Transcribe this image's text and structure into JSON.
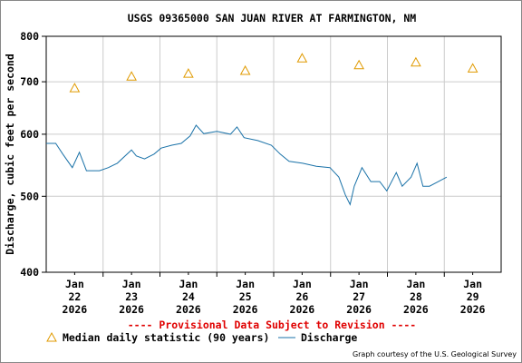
{
  "chart_data": {
    "type": "line",
    "title": "USGS 09365000 SAN JUAN RIVER AT FARMINGTON, NM",
    "y_label": "Discharge, cubic feet per second",
    "annotation": "---- Provisional Data Subject to Revision ----",
    "credit": "Graph courtesy of the U.S. Geological Survey",
    "log_y": true,
    "grid": true,
    "ylim": [
      400,
      800
    ],
    "yticks": [
      400,
      500,
      600,
      700,
      800
    ],
    "xlim": [
      "2026-01-22T00:00",
      "2026-01-30T00:00"
    ],
    "xticks": [
      {
        "value": "2026-01-22T12:00",
        "label": [
          "Jan",
          "22",
          "2026"
        ]
      },
      {
        "value": "2026-01-23T12:00",
        "label": [
          "Jan",
          "23",
          "2026"
        ]
      },
      {
        "value": "2026-01-24T12:00",
        "label": [
          "Jan",
          "24",
          "2026"
        ]
      },
      {
        "value": "2026-01-25T12:00",
        "label": [
          "Jan",
          "25",
          "2026"
        ]
      },
      {
        "value": "2026-01-26T12:00",
        "label": [
          "Jan",
          "26",
          "2026"
        ]
      },
      {
        "value": "2026-01-27T12:00",
        "label": [
          "Jan",
          "27",
          "2026"
        ]
      },
      {
        "value": "2026-01-28T12:00",
        "label": [
          "Jan",
          "28",
          "2026"
        ]
      },
      {
        "value": "2026-01-29T12:00",
        "label": [
          "Jan",
          "29",
          "2026"
        ]
      }
    ],
    "xgrid": [
      "2026-01-23T00:00",
      "2026-01-24T00:00",
      "2026-01-25T00:00",
      "2026-01-26T00:00",
      "2026-01-27T00:00",
      "2026-01-28T00:00",
      "2026-01-29T00:00"
    ],
    "series": [
      {
        "name": "Median daily statistic (90 years)",
        "color": "#e09a00",
        "marker": "triangle",
        "x": [
          "2026-01-22T12:00",
          "2026-01-23T12:00",
          "2026-01-24T12:00",
          "2026-01-25T12:00",
          "2026-01-26T12:00",
          "2026-01-27T12:00",
          "2026-01-28T12:00",
          "2026-01-29T12:00"
        ],
        "values": [
          687,
          711,
          717,
          723,
          750,
          735,
          741,
          728
        ]
      },
      {
        "name": "Discharge",
        "color": "#1a72a8",
        "marker": "line",
        "x": [
          "2026-01-22T00:00",
          "2026-01-22T04:00",
          "2026-01-22T07:00",
          "2026-01-22T11:00",
          "2026-01-22T14:00",
          "2026-01-22T17:00",
          "2026-01-22T22:30",
          "2026-01-23T02:15",
          "2026-01-23T06:00",
          "2026-01-23T12:00",
          "2026-01-23T14:00",
          "2026-01-23T17:30",
          "2026-01-23T21:30",
          "2026-01-24T00:30",
          "2026-01-24T05:00",
          "2026-01-24T09:00",
          "2026-01-24T12:45",
          "2026-01-24T15:15",
          "2026-01-24T18:30",
          "2026-01-25T00:00",
          "2026-01-25T05:45",
          "2026-01-25T08:30",
          "2026-01-25T11:30",
          "2026-01-25T17:15",
          "2026-01-25T23:00",
          "2026-01-26T02:45",
          "2026-01-26T06:30",
          "2026-01-26T12:15",
          "2026-01-26T18:00",
          "2026-01-26T23:45",
          "2026-01-27T03:30",
          "2026-01-27T06:15",
          "2026-01-27T08:15",
          "2026-01-27T10:00",
          "2026-01-27T13:15",
          "2026-01-27T17:00",
          "2026-01-27T20:45",
          "2026-01-27T23:45",
          "2026-01-28T03:45",
          "2026-01-28T06:15",
          "2026-01-28T10:00",
          "2026-01-28T12:30",
          "2026-01-28T15:00",
          "2026-01-28T17:45",
          "2026-01-28T21:30",
          "2026-01-29T01:00"
        ],
        "values": [
          584,
          584,
          566,
          544,
          569,
          539,
          539,
          544,
          551,
          573,
          563,
          558,
          566,
          576,
          581,
          584,
          597,
          616,
          601,
          605,
          600,
          613,
          594,
          589,
          581,
          566,
          554,
          551,
          546,
          544,
          529,
          502,
          488,
          515,
          544,
          522,
          522,
          508,
          536,
          515,
          529,
          551,
          515,
          515,
          522,
          529
        ]
      }
    ]
  }
}
